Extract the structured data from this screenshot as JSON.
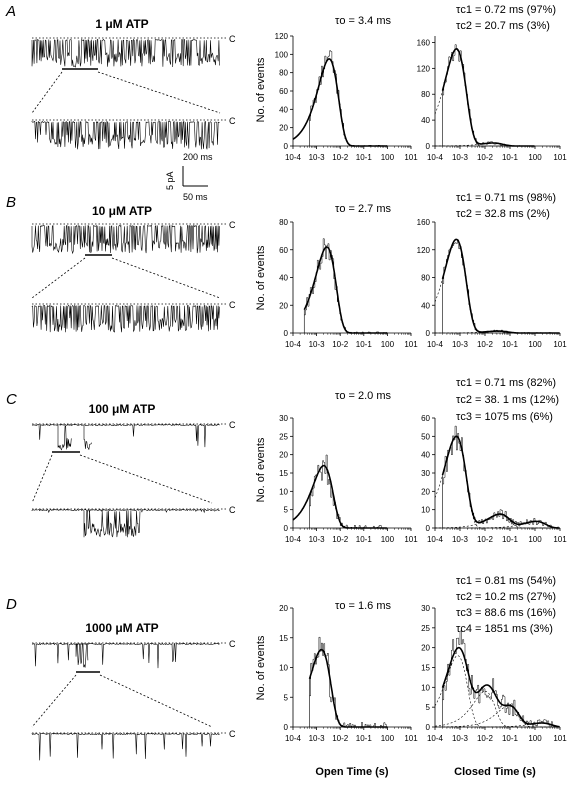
{
  "figure": {
    "panels": [
      {
        "letter": "A",
        "trace_title": "1 μM ATP",
        "closed_label": "C",
        "scale_bar": {
          "time_long": "200 ms",
          "time_short": "50 ms",
          "current": "5 pA"
        },
        "open_annotation": "τo = 3.4 ms",
        "closed_annotations": [
          "τc1 = 0.72 ms (97%)",
          "τc2 = 20.7 ms (3%)"
        ]
      },
      {
        "letter": "B",
        "trace_title": "10 μM ATP",
        "closed_label": "C",
        "open_annotation": "τo = 2.7 ms",
        "closed_annotations": [
          "τc1 = 0.71 ms (98%)",
          "τc2 = 32.8 ms (2%)"
        ]
      },
      {
        "letter": "C",
        "trace_title": "100 μM ATP",
        "closed_label": "C",
        "open_annotation": "τo = 2.0 ms",
        "closed_annotations": [
          "τc1 = 0.71 ms (82%)",
          "τc2 = 38. 1 ms (12%)",
          "τc3 = 1075 ms (6%)"
        ]
      },
      {
        "letter": "D",
        "trace_title": "1000 μM ATP",
        "closed_label": "C",
        "open_annotation": "τo = 1.6 ms",
        "closed_annotations": [
          "τc1 = 0.81 ms (54%)",
          "τc2 = 10.2 ms (27%)",
          "τc3 = 88.6 ms (16%)",
          "τc4 = 1851 ms (3%)"
        ]
      }
    ],
    "ylabel": "No. of events",
    "x_axis_open": "Open Time (s)",
    "x_axis_closed": "Closed Time (s)",
    "x_tick_labels": [
      "10-4",
      "10-3",
      "10-2",
      "10-1",
      "100",
      "101"
    ]
  },
  "chart_data": [
    {
      "type": "line",
      "panel": "A",
      "histogram": "open",
      "x_scale": "log",
      "xlim": [
        0.0001,
        1
      ],
      "ylim": [
        0,
        120
      ],
      "y_ticks": [
        0,
        20,
        40,
        60,
        80,
        100,
        120
      ],
      "tau_ms": [
        3.4
      ],
      "weights": [
        1
      ],
      "peak": 95,
      "x_start": 0.0001,
      "hist_start": 0.0005
    },
    {
      "type": "line",
      "panel": "A",
      "histogram": "closed",
      "x_scale": "log",
      "xlim": [
        0.0001,
        1
      ],
      "ylim": [
        0,
        170
      ],
      "y_ticks": [
        0,
        40,
        80,
        120,
        160
      ],
      "tau_ms": [
        0.72,
        20.7
      ],
      "weights": [
        0.97,
        0.03
      ],
      "peak": 150,
      "x_start": 0.0002,
      "hist_start": 0.0002
    },
    {
      "type": "line",
      "panel": "B",
      "histogram": "open",
      "x_scale": "log",
      "xlim": [
        0.0001,
        1
      ],
      "ylim": [
        0,
        80
      ],
      "y_ticks": [
        0,
        20,
        40,
        60,
        80
      ],
      "tau_ms": [
        2.7
      ],
      "weights": [
        1
      ],
      "peak": 62,
      "x_start": 0.0003,
      "hist_start": 0.0003
    },
    {
      "type": "line",
      "panel": "B",
      "histogram": "closed",
      "x_scale": "log",
      "xlim": [
        0.0001,
        10
      ],
      "ylim": [
        0,
        160
      ],
      "y_ticks": [
        0,
        40,
        80,
        120,
        160
      ],
      "tau_ms": [
        0.71,
        32.8
      ],
      "weights": [
        0.98,
        0.02
      ],
      "peak": 135,
      "x_start": 0.0002,
      "hist_start": 0.0002
    },
    {
      "type": "line",
      "panel": "C",
      "histogram": "open",
      "x_scale": "log",
      "xlim": [
        0.0001,
        1
      ],
      "ylim": [
        0,
        30
      ],
      "y_ticks": [
        0,
        5,
        10,
        15,
        20,
        25,
        30
      ],
      "tau_ms": [
        2.0
      ],
      "weights": [
        1
      ],
      "peak": 17,
      "x_start": 0.0001,
      "hist_start": 0.0005
    },
    {
      "type": "line",
      "panel": "C",
      "histogram": "closed",
      "x_scale": "log",
      "xlim": [
        0.0001,
        10
      ],
      "ylim": [
        0,
        60
      ],
      "y_ticks": [
        0,
        10,
        20,
        30,
        40,
        50,
        60
      ],
      "tau_ms": [
        0.71,
        38.1,
        1075
      ],
      "weights": [
        0.82,
        0.12,
        0.06
      ],
      "peak": 50,
      "x_start": 0.0002,
      "hist_start": 0.0002
    },
    {
      "type": "line",
      "panel": "D",
      "histogram": "open",
      "x_scale": "log",
      "xlim": [
        0.0001,
        1
      ],
      "ylim": [
        0,
        20
      ],
      "y_ticks": [
        0,
        5,
        10,
        15,
        20
      ],
      "tau_ms": [
        1.6
      ],
      "weights": [
        1
      ],
      "peak": 13,
      "x_start": 0.0005,
      "hist_start": 0.0005
    },
    {
      "type": "line",
      "panel": "D",
      "histogram": "closed",
      "x_scale": "log",
      "xlim": [
        0.0001,
        10
      ],
      "ylim": [
        0,
        30
      ],
      "y_ticks": [
        0,
        5,
        10,
        15,
        20,
        25,
        30
      ],
      "tau_ms": [
        0.81,
        10.2,
        88.6,
        1851
      ],
      "weights": [
        0.54,
        0.27,
        0.16,
        0.03
      ],
      "peak": 20,
      "x_start": 0.0002,
      "hist_start": 0.0002
    }
  ]
}
